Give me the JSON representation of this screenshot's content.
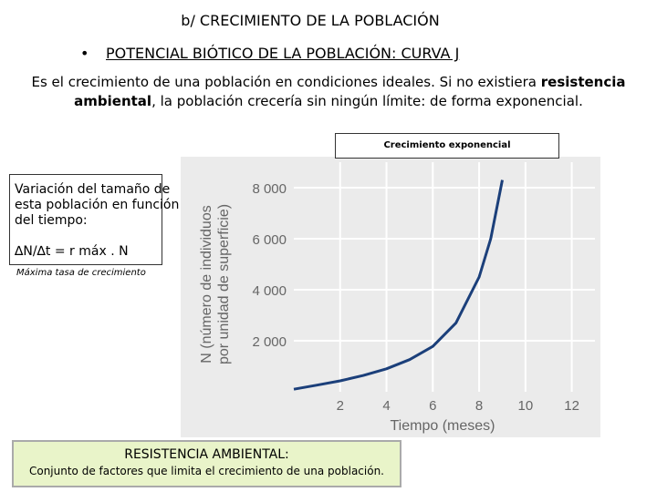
{
  "slide": {
    "title": "b/ CRECIMIENTO DE LA POBLACIÓN",
    "bullet": "•",
    "subtitle": "POTENCIAL BIÓTICO DE LA POBLACIÓN: CURVA J",
    "intro_before": "Es el crecimiento de una población en condiciones ideales. Si no existiera ",
    "intro_bold1": "resistencia ambiental",
    "intro_after": ", la población crecería sin ningún límite: de forma exponencial."
  },
  "chart_label": "Crecimiento exponencial",
  "variation": {
    "text": "Variación del tamaño de esta población en función del tiempo:",
    "formula": "∆N/∆t = r máx . N"
  },
  "max_rate": "Máxima tasa de crecimiento",
  "resistance": {
    "heading": "RESISTENCIA AMBIENTAL:",
    "definition": "Conjunto de factores que limita el crecimiento de una población."
  },
  "colors": {
    "curve": "#1b3f7a",
    "chart_bg": "#ebebeb",
    "box_green": "#e9f4c9"
  },
  "chart_data": {
    "type": "line",
    "title": "",
    "xlabel": "Tiempo (meses)",
    "ylabel": "N (número de individuos por unidad de superficie)",
    "x_ticks": [
      "2",
      "4",
      "6",
      "8",
      "10",
      "12"
    ],
    "y_ticks": [
      "2 000",
      "4 000",
      "6 000",
      "8 000"
    ],
    "xlim": [
      0,
      13
    ],
    "ylim": [
      0,
      9000
    ],
    "grid": true,
    "series": [
      {
        "x": [
          0,
          1,
          2,
          3,
          4,
          5,
          6,
          7,
          8,
          8.5,
          9
        ],
        "y": [
          100,
          260,
          430,
          640,
          900,
          1260,
          1780,
          2700,
          4500,
          6000,
          8300
        ]
      }
    ]
  }
}
